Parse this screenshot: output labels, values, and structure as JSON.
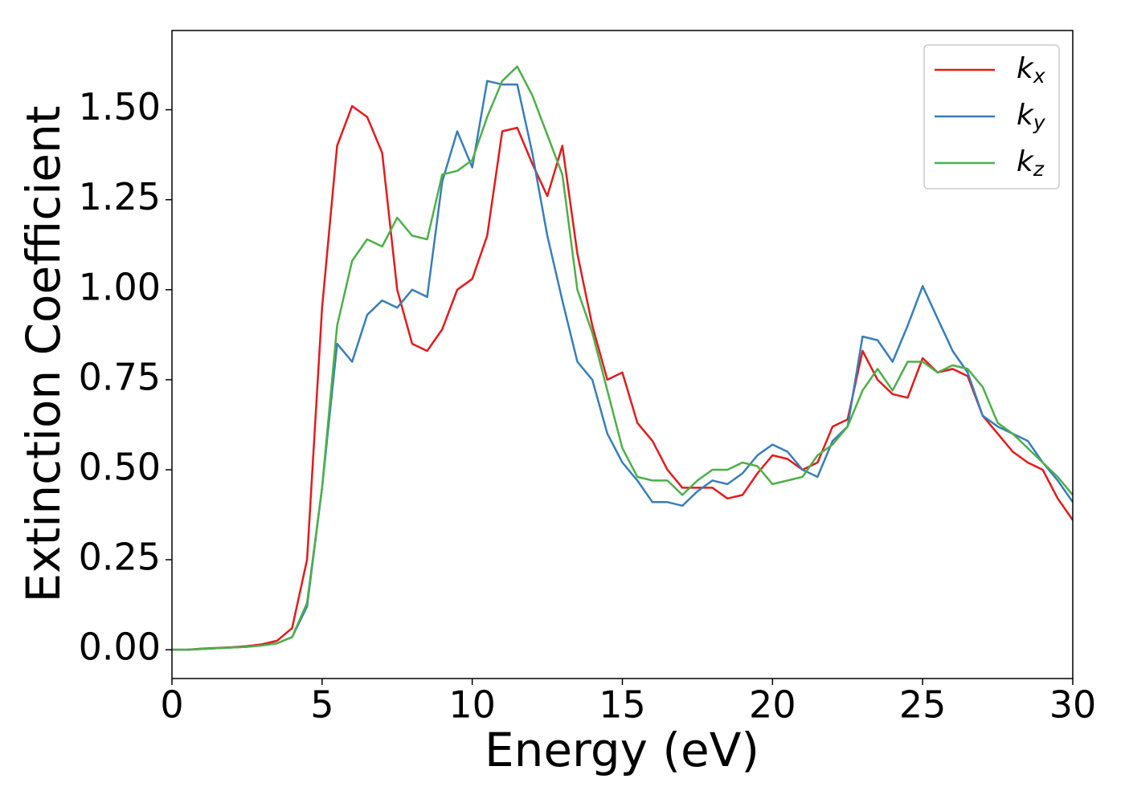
{
  "chart_data": {
    "type": "line",
    "xlabel": "Energy (eV)",
    "ylabel": "Extinction Coefficient",
    "x": [
      0,
      0.5,
      1,
      1.5,
      2,
      2.5,
      3,
      3.5,
      4,
      4.5,
      5,
      5.5,
      6,
      6.5,
      7,
      7.5,
      8,
      8.5,
      9,
      9.5,
      10,
      10.5,
      11,
      11.5,
      12,
      12.5,
      13,
      13.5,
      14,
      14.5,
      15,
      15.5,
      16,
      16.5,
      17,
      17.5,
      18,
      18.5,
      19,
      19.5,
      20,
      20.5,
      21,
      21.5,
      22,
      22.5,
      23,
      23.5,
      24,
      24.5,
      25,
      25.5,
      26,
      26.5,
      27,
      27.5,
      28,
      28.5,
      29,
      29.5,
      30
    ],
    "series": [
      {
        "name": "kx",
        "color": "#e41a1c",
        "values": [
          0,
          0,
          0.003,
          0.005,
          0.007,
          0.01,
          0.015,
          0.025,
          0.06,
          0.25,
          0.95,
          1.4,
          1.51,
          1.48,
          1.38,
          1.0,
          0.85,
          0.83,
          0.89,
          1.0,
          1.03,
          1.15,
          1.44,
          1.45,
          1.35,
          1.26,
          1.4,
          1.1,
          0.9,
          0.75,
          0.77,
          0.63,
          0.58,
          0.5,
          0.45,
          0.45,
          0.45,
          0.42,
          0.43,
          0.49,
          0.54,
          0.53,
          0.5,
          0.52,
          0.62,
          0.64,
          0.83,
          0.75,
          0.71,
          0.7,
          0.81,
          0.77,
          0.78,
          0.76,
          0.65,
          0.6,
          0.55,
          0.52,
          0.5,
          0.42,
          0.36
        ]
      },
      {
        "name": "ky",
        "color": "#377eb8",
        "values": [
          0,
          0,
          0.002,
          0.004,
          0.006,
          0.008,
          0.012,
          0.018,
          0.035,
          0.12,
          0.45,
          0.85,
          0.8,
          0.93,
          0.97,
          0.95,
          1.0,
          0.98,
          1.3,
          1.44,
          1.34,
          1.58,
          1.57,
          1.57,
          1.38,
          1.15,
          0.97,
          0.8,
          0.75,
          0.6,
          0.52,
          0.47,
          0.41,
          0.41,
          0.4,
          0.44,
          0.47,
          0.46,
          0.49,
          0.54,
          0.57,
          0.55,
          0.5,
          0.48,
          0.58,
          0.62,
          0.87,
          0.86,
          0.8,
          0.9,
          1.01,
          0.92,
          0.83,
          0.77,
          0.65,
          0.62,
          0.6,
          0.58,
          0.52,
          0.47,
          0.41
        ]
      },
      {
        "name": "kz",
        "color": "#4daf4a",
        "values": [
          0,
          0,
          0.002,
          0.004,
          0.006,
          0.008,
          0.012,
          0.018,
          0.035,
          0.13,
          0.45,
          0.9,
          1.08,
          1.14,
          1.12,
          1.2,
          1.15,
          1.14,
          1.32,
          1.33,
          1.36,
          1.48,
          1.58,
          1.62,
          1.54,
          1.43,
          1.32,
          1.0,
          0.88,
          0.72,
          0.56,
          0.48,
          0.47,
          0.47,
          0.43,
          0.47,
          0.5,
          0.5,
          0.52,
          0.51,
          0.46,
          0.47,
          0.48,
          0.54,
          0.57,
          0.62,
          0.72,
          0.78,
          0.72,
          0.8,
          0.8,
          0.77,
          0.79,
          0.78,
          0.73,
          0.63,
          0.6,
          0.56,
          0.52,
          0.48,
          0.43
        ]
      }
    ],
    "xlim": [
      0,
      30
    ],
    "xticks": [
      0,
      5,
      10,
      15,
      20,
      25,
      30
    ],
    "ylim": [
      -0.08,
      1.72
    ],
    "yticks": [
      {
        "value": 0,
        "label": "0.00"
      },
      0.25,
      {
        "value": 0.5,
        "label": "0.50"
      },
      0.75,
      {
        "value": 1,
        "label": "1.00"
      },
      1.25,
      {
        "value": 1.5,
        "label": "1.50"
      }
    ],
    "grid": false,
    "legend": "upper right"
  }
}
